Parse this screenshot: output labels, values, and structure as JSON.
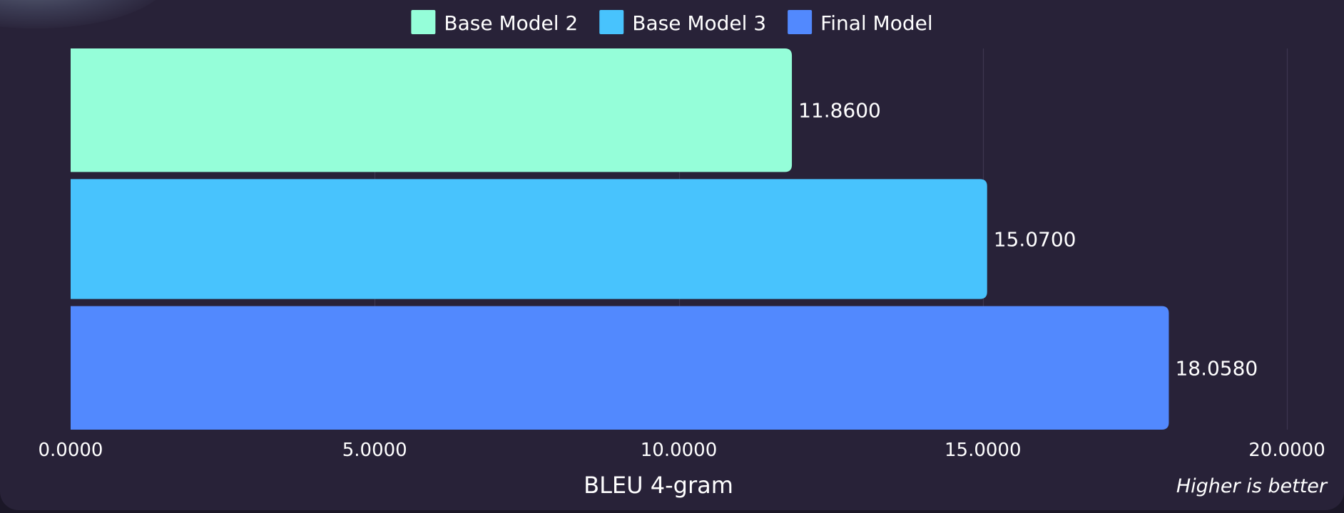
{
  "chart_data": {
    "type": "bar",
    "orientation": "horizontal",
    "xlabel": "BLEU 4-gram",
    "xlim": [
      0,
      20
    ],
    "x_ticks": [
      0,
      5,
      10,
      15,
      20
    ],
    "x_tick_labels": [
      "0.0000",
      "5.0000",
      "10.0000",
      "15.0000",
      "20.0000"
    ],
    "grid": true,
    "legend_position": "top-center",
    "annotation": "Higher is better",
    "series": [
      {
        "name": "Base Model 2",
        "value": 11.86,
        "label": "11.8600",
        "color": "#95fed9"
      },
      {
        "name": "Base Model 3",
        "value": 15.07,
        "label": "15.0700",
        "color": "#48c3fd"
      },
      {
        "name": "Final Model",
        "value": 18.058,
        "label": "18.0580",
        "color": "#5289fe"
      }
    ]
  },
  "colors": {
    "background": "#282238",
    "gridline": "#3d3650",
    "text": "#ffffff"
  }
}
